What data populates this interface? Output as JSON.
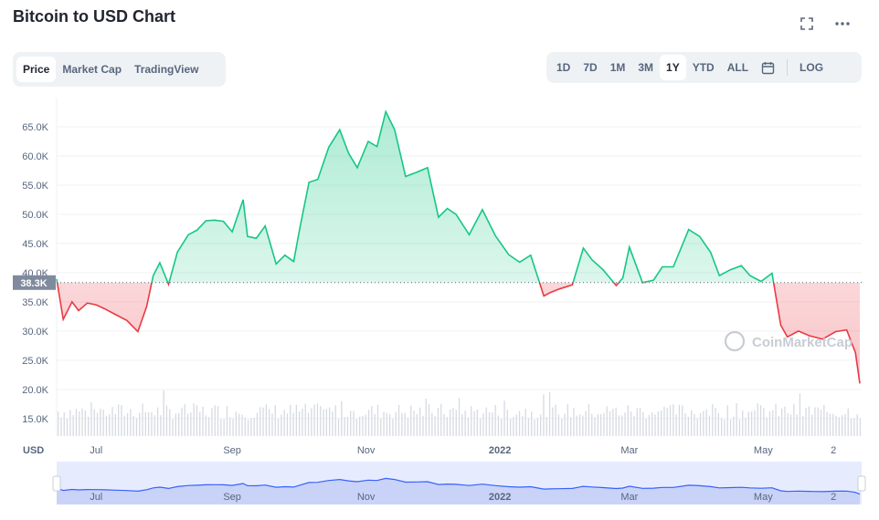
{
  "header": {
    "title": "Bitcoin to USD Chart",
    "fullscreen_icon": "fullscreen-icon",
    "more_icon": "more-icon"
  },
  "view_tabs": [
    {
      "label": "Price",
      "active": true
    },
    {
      "label": "Market Cap",
      "active": false
    },
    {
      "label": "TradingView",
      "active": false
    }
  ],
  "range_tabs": [
    {
      "label": "1D",
      "active": false
    },
    {
      "label": "7D",
      "active": false
    },
    {
      "label": "1M",
      "active": false
    },
    {
      "label": "3M",
      "active": false
    },
    {
      "label": "1Y",
      "active": true
    },
    {
      "label": "YTD",
      "active": false
    },
    {
      "label": "ALL",
      "active": false
    }
  ],
  "calendar_icon": "calendar-icon",
  "log_label": "LOG",
  "watermark": "CoinMarketCap",
  "colors": {
    "up": "#16c784",
    "down": "#ea3943",
    "navigator": "#3861fb",
    "current_badge": "#808a9d"
  },
  "chart_data": {
    "type": "line",
    "ylabel": "USD",
    "y_ticks": [
      "65.0K",
      "60.0K",
      "55.0K",
      "50.0K",
      "45.0K",
      "40.0K",
      "35.0K",
      "30.0K",
      "25.0K",
      "20.0K",
      "15.0K"
    ],
    "y_tick_values": [
      65000,
      60000,
      55000,
      50000,
      45000,
      40000,
      35000,
      30000,
      25000,
      20000,
      15000
    ],
    "x_ticks": [
      "Jul",
      "Sep",
      "Nov",
      "2022",
      "Mar",
      "May",
      "2"
    ],
    "x_tick_dates": [
      "2021-07-01",
      "2021-09-01",
      "2021-11-01",
      "2022-01-01",
      "2022-03-01",
      "2022-05-01",
      "2022-06-02"
    ],
    "ylim": [
      12000,
      70000
    ],
    "baseline_value": 38300,
    "current_label": "38.3K",
    "series": [
      {
        "x": [
          "2021-06-13",
          "2021-06-16",
          "2021-06-20",
          "2021-06-23",
          "2021-06-27",
          "2021-07-01",
          "2021-07-05",
          "2021-07-10",
          "2021-07-15",
          "2021-07-20",
          "2021-07-24",
          "2021-07-27",
          "2021-07-30",
          "2021-08-03",
          "2021-08-07",
          "2021-08-12",
          "2021-08-16",
          "2021-08-20",
          "2021-08-24",
          "2021-08-28",
          "2021-09-01",
          "2021-09-06",
          "2021-09-08",
          "2021-09-12",
          "2021-09-16",
          "2021-09-21",
          "2021-09-25",
          "2021-09-29",
          "2021-10-02",
          "2021-10-06",
          "2021-10-10",
          "2021-10-15",
          "2021-10-20",
          "2021-10-24",
          "2021-10-28",
          "2021-11-02",
          "2021-11-06",
          "2021-11-10",
          "2021-11-14",
          "2021-11-19",
          "2021-11-24",
          "2021-11-29",
          "2021-12-04",
          "2021-12-08",
          "2021-12-12",
          "2021-12-18",
          "2021-12-24",
          "2021-12-30",
          "2022-01-05",
          "2022-01-10",
          "2022-01-15",
          "2022-01-21",
          "2022-01-24",
          "2022-01-28",
          "2022-02-03",
          "2022-02-08",
          "2022-02-12",
          "2022-02-17",
          "2022-02-23",
          "2022-02-26",
          "2022-03-01",
          "2022-03-07",
          "2022-03-12",
          "2022-03-16",
          "2022-03-21",
          "2022-03-28",
          "2022-04-02",
          "2022-04-07",
          "2022-04-11",
          "2022-04-16",
          "2022-04-21",
          "2022-04-25",
          "2022-04-30",
          "2022-05-05",
          "2022-05-09",
          "2022-05-12",
          "2022-05-17",
          "2022-05-22",
          "2022-05-28",
          "2022-06-03",
          "2022-06-08",
          "2022-06-12",
          "2022-06-14"
        ],
        "values": [
          38900,
          32000,
          35000,
          33500,
          34800,
          34500,
          33800,
          32800,
          31800,
          29900,
          34200,
          39500,
          41700,
          38000,
          43500,
          46500,
          47300,
          48900,
          49000,
          48800,
          47000,
          52500,
          46200,
          45900,
          48000,
          41500,
          43000,
          41900,
          48000,
          55500,
          56000,
          61500,
          64500,
          60500,
          58000,
          62500,
          61600,
          67600,
          64500,
          56500,
          57200,
          58000,
          49500,
          51000,
          50000,
          46500,
          50800,
          46300,
          43100,
          41800,
          43000,
          36000,
          36600,
          37200,
          37900,
          44200,
          42200,
          40500,
          37800,
          39100,
          44400,
          38300,
          38700,
          41000,
          41000,
          47400,
          46200,
          43500,
          39500,
          40500,
          41200,
          39500,
          38500,
          39900,
          31000,
          29000,
          30000,
          29200,
          28600,
          29900,
          30200,
          26300,
          21000
        ]
      }
    ],
    "navigator": {
      "x_ticks": [
        "Jul",
        "Sep",
        "Nov",
        "2022",
        "Mar",
        "May",
        "2"
      ]
    }
  }
}
